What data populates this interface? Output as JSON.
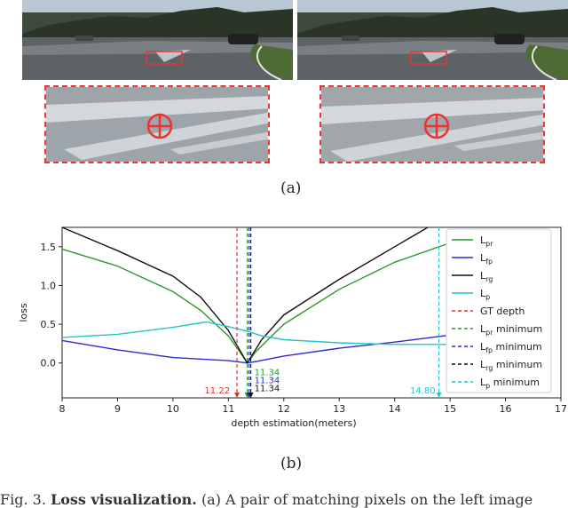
{
  "figure": {
    "caption_a": "(a)",
    "caption_b": "(b)",
    "caption_text_prefix": "Fig. 3.",
    "caption_text_bold": "Loss visualization.",
    "caption_text_rest": "(a) A pair of matching pixels on the left image"
  },
  "chart_data": {
    "type": "line",
    "xlabel": "depth estimation(meters)",
    "ylabel": "loss",
    "xlim": [
      8,
      17
    ],
    "ylim": [
      -0.45,
      1.75
    ],
    "xticks": [
      "8",
      "9",
      "10",
      "11",
      "12",
      "13",
      "14",
      "15",
      "16",
      "17"
    ],
    "yticks": [
      "0.0",
      "0.5",
      "1.0",
      "1.5"
    ],
    "grid": false,
    "legend_position": "upper-right",
    "series": [
      {
        "name": "L_pr",
        "label_main": "L",
        "label_sub": "pr",
        "color": "#2a9a2a",
        "style": "solid",
        "x": [
          8,
          9,
          10,
          10.5,
          11,
          11.2,
          11.34,
          11.5,
          12,
          13,
          14,
          15
        ],
        "y": [
          1.47,
          1.25,
          0.92,
          0.68,
          0.35,
          0.15,
          0.0,
          0.15,
          0.5,
          0.95,
          1.3,
          1.55
        ]
      },
      {
        "name": "L_fp",
        "label_main": "L",
        "label_sub": "fp",
        "color": "#2b2bd6",
        "style": "solid",
        "x": [
          8,
          9,
          10,
          11,
          11.34,
          11.5,
          12,
          13,
          14,
          15
        ],
        "y": [
          0.29,
          0.17,
          0.07,
          0.03,
          0.0,
          0.02,
          0.09,
          0.19,
          0.27,
          0.36
        ]
      },
      {
        "name": "L_rg",
        "label_main": "L",
        "label_sub": "rg",
        "color": "#111111",
        "style": "solid",
        "x": [
          8,
          9,
          10,
          10.5,
          11,
          11.34,
          11.6,
          12,
          13,
          14,
          14.6
        ],
        "y": [
          1.75,
          1.45,
          1.12,
          0.85,
          0.42,
          0.0,
          0.3,
          0.62,
          1.08,
          1.5,
          1.75
        ]
      },
      {
        "name": "L_p",
        "label_main": "L",
        "label_sub": "p",
        "color": "#22c6c6",
        "style": "solid",
        "x": [
          8,
          9,
          10,
          10.6,
          11,
          11.34,
          11.6,
          12,
          13,
          14,
          15
        ],
        "y": [
          0.33,
          0.37,
          0.46,
          0.53,
          0.47,
          0.41,
          0.35,
          0.3,
          0.26,
          0.24,
          0.24
        ]
      }
    ],
    "reference_lines": [
      {
        "name": "GT depth",
        "label_main": "GT depth",
        "label_sub": "",
        "color": "#e03030",
        "x": 11.22,
        "value_label": "11.22"
      },
      {
        "name": "L_pr minimum",
        "label_main": "L",
        "label_sub": "pr",
        "label_tail": " minimum",
        "color": "#2a9a2a",
        "x": 11.34,
        "value_label": "11.34"
      },
      {
        "name": "L_fp minimum",
        "label_main": "L",
        "label_sub": "fp",
        "label_tail": " minimum",
        "color": "#2b2bd6",
        "x": 11.34,
        "value_label": "11.34"
      },
      {
        "name": "L_rg minimum",
        "label_main": "L",
        "label_sub": "rg",
        "label_tail": " minimum",
        "color": "#111111",
        "x": 11.34,
        "value_label": "11.34"
      },
      {
        "name": "L_p minimum",
        "label_main": "L",
        "label_sub": "p",
        "label_tail": " minimum",
        "color": "#22c6c6",
        "x": 14.8,
        "value_label": "14.80"
      }
    ]
  }
}
